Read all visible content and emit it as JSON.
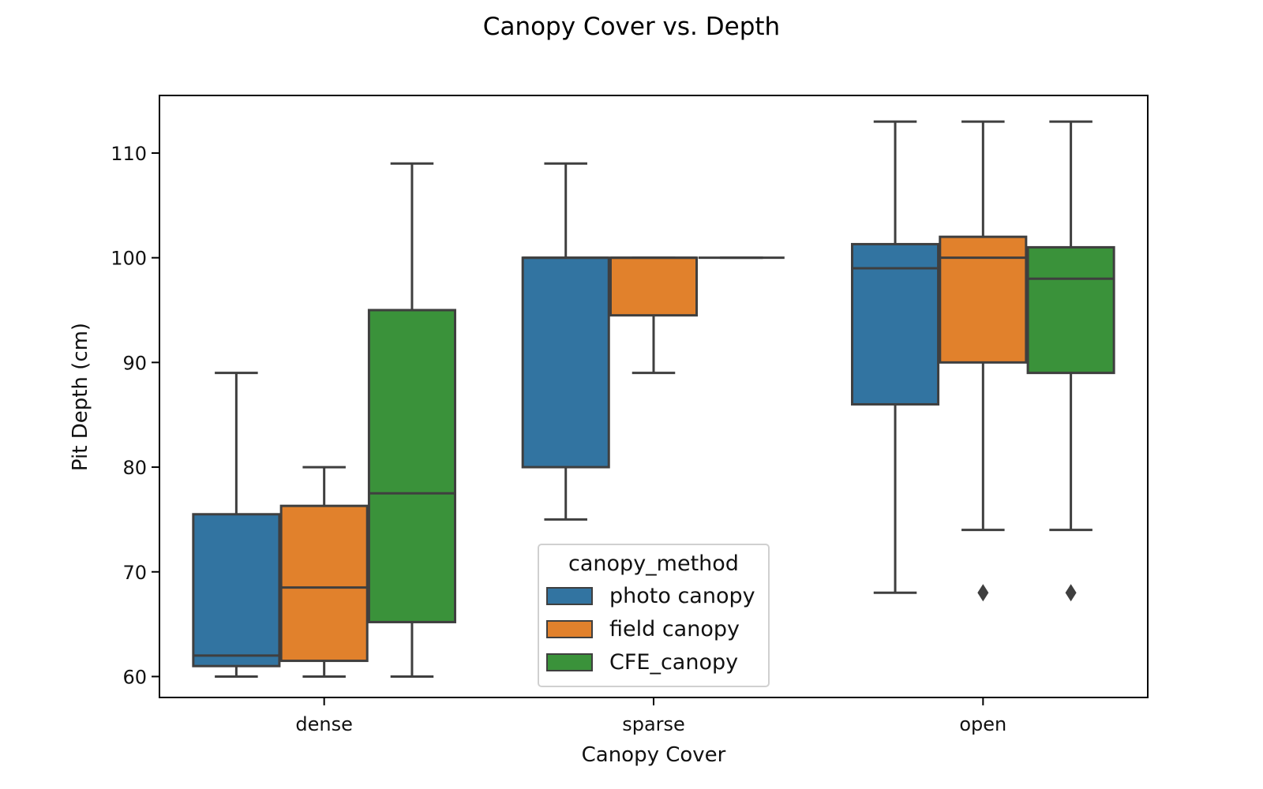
{
  "chart_data": {
    "type": "box",
    "title": "Canopy Cover vs. Depth",
    "xlabel": "Canopy Cover",
    "ylabel": "Pit Depth (cm)",
    "categories": [
      "dense",
      "sparse",
      "open"
    ],
    "ylim": [
      58,
      115.5
    ],
    "yticks": [
      60,
      70,
      80,
      90,
      100,
      110
    ],
    "grid": false,
    "legend": {
      "title": "canopy_method",
      "placement": "bottom-center"
    },
    "series": [
      {
        "name": "photo canopy",
        "color": "#3274a1",
        "boxes": [
          {
            "category": "dense",
            "whislo": 60,
            "q1": 61,
            "med": 62,
            "q3": 75.5,
            "whishi": 89,
            "fliers": []
          },
          {
            "category": "sparse",
            "whislo": 75,
            "q1": 80,
            "med": 100,
            "q3": 100,
            "whishi": 109,
            "fliers": []
          },
          {
            "category": "open",
            "whislo": 68,
            "q1": 86,
            "med": 99,
            "q3": 101.3,
            "whishi": 113,
            "fliers": []
          }
        ]
      },
      {
        "name": "field canopy",
        "color": "#e1812c",
        "boxes": [
          {
            "category": "dense",
            "whislo": 60,
            "q1": 61.5,
            "med": 68.5,
            "q3": 76.3,
            "whishi": 80,
            "fliers": []
          },
          {
            "category": "sparse",
            "whislo": 89,
            "q1": 94.5,
            "med": 100,
            "q3": 100,
            "whishi": 100,
            "fliers": []
          },
          {
            "category": "open",
            "whislo": 74,
            "q1": 90,
            "med": 100,
            "q3": 102,
            "whishi": 113,
            "fliers": [
              68
            ]
          }
        ]
      },
      {
        "name": "CFE_canopy",
        "color": "#3a923a",
        "boxes": [
          {
            "category": "dense",
            "whislo": 60,
            "q1": 65.2,
            "med": 77.5,
            "q3": 95,
            "whishi": 109,
            "fliers": []
          },
          {
            "category": "sparse",
            "whislo": 100,
            "q1": 100,
            "med": 100,
            "q3": 100,
            "whishi": 100,
            "fliers": []
          },
          {
            "category": "open",
            "whislo": 74,
            "q1": 89,
            "med": 98,
            "q3": 101,
            "whishi": 113,
            "fliers": [
              68
            ]
          }
        ]
      }
    ]
  }
}
